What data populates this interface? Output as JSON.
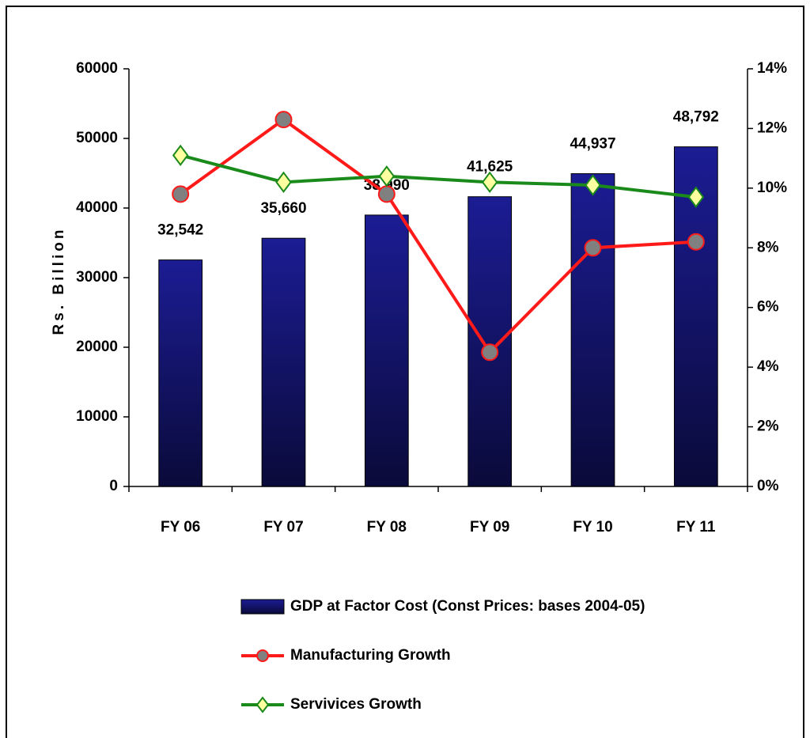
{
  "chart_data": {
    "type": "bar",
    "ylabel": "Rs. Billion",
    "categories": [
      "FY 06",
      "FY 07",
      "FY 08",
      "FY 09",
      "FY 10",
      "FY 11"
    ],
    "series": [
      {
        "name": "GDP at Factor Cost (Const Prices: bases 2004-05)",
        "color": "#16168a",
        "values": [
          32542,
          35660,
          38990,
          41625,
          44937,
          48792
        ],
        "value_labels": [
          "32,542",
          "35,660",
          "38,990",
          "41,625",
          "44,937",
          "48,792"
        ]
      },
      {
        "name": "Manufacturing Growth",
        "type": "line",
        "axis": "y2",
        "color": "#ff1a1a",
        "marker_color": "#808080",
        "marker": "circle",
        "values": [
          9.8,
          12.3,
          9.8,
          4.5,
          8.0,
          8.2
        ]
      },
      {
        "name": "Servivices Growth",
        "type": "line",
        "axis": "y2",
        "color": "#1a8a1a",
        "marker_color": "#ffffa0",
        "marker": "diamond",
        "values": [
          11.1,
          10.2,
          10.4,
          10.2,
          10.1,
          9.7
        ]
      }
    ],
    "ylim": [
      0,
      60000
    ],
    "yticks": [
      0,
      10000,
      20000,
      30000,
      40000,
      50000,
      60000
    ],
    "y2lim": [
      0,
      14
    ],
    "y2ticks": [
      {
        "value": 0,
        "label": "0%"
      },
      {
        "value": 2,
        "label": "2%"
      },
      {
        "value": 4,
        "label": "4%"
      },
      {
        "value": 6,
        "label": "6%"
      },
      {
        "value": 8,
        "label": "8%"
      },
      {
        "value": 10,
        "label": "10%"
      },
      {
        "value": 12,
        "label": "12%"
      },
      {
        "value": 14,
        "label": "14%"
      }
    ],
    "legend": "bottom"
  }
}
